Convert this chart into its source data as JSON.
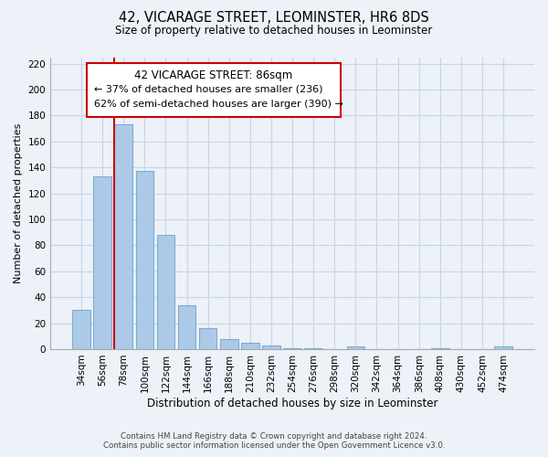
{
  "title": "42, VICARAGE STREET, LEOMINSTER, HR6 8DS",
  "subtitle": "Size of property relative to detached houses in Leominster",
  "xlabel": "Distribution of detached houses by size in Leominster",
  "ylabel": "Number of detached properties",
  "bar_labels": [
    "34sqm",
    "56sqm",
    "78sqm",
    "100sqm",
    "122sqm",
    "144sqm",
    "166sqm",
    "188sqm",
    "210sqm",
    "232sqm",
    "254sqm",
    "276sqm",
    "298sqm",
    "320sqm",
    "342sqm",
    "364sqm",
    "386sqm",
    "408sqm",
    "430sqm",
    "452sqm",
    "474sqm"
  ],
  "bar_values": [
    30,
    133,
    173,
    137,
    88,
    34,
    16,
    8,
    5,
    3,
    1,
    1,
    0,
    2,
    0,
    0,
    0,
    1,
    0,
    0,
    2
  ],
  "bar_color": "#adc9e8",
  "bar_edge_color": "#7aaecf",
  "highlight_color": "#cc0000",
  "ylim": [
    0,
    225
  ],
  "yticks": [
    0,
    20,
    40,
    60,
    80,
    100,
    120,
    140,
    160,
    180,
    200,
    220
  ],
  "annotation_title": "42 VICARAGE STREET: 86sqm",
  "annotation_line1": "← 37% of detached houses are smaller (236)",
  "annotation_line2": "62% of semi-detached houses are larger (390) →",
  "annotation_box_color": "#ffffff",
  "annotation_box_edge": "#cc0000",
  "footer_line1": "Contains HM Land Registry data © Crown copyright and database right 2024.",
  "footer_line2": "Contains public sector information licensed under the Open Government Licence v3.0.",
  "grid_color": "#c8d4e8",
  "background_color": "#edf1f8"
}
